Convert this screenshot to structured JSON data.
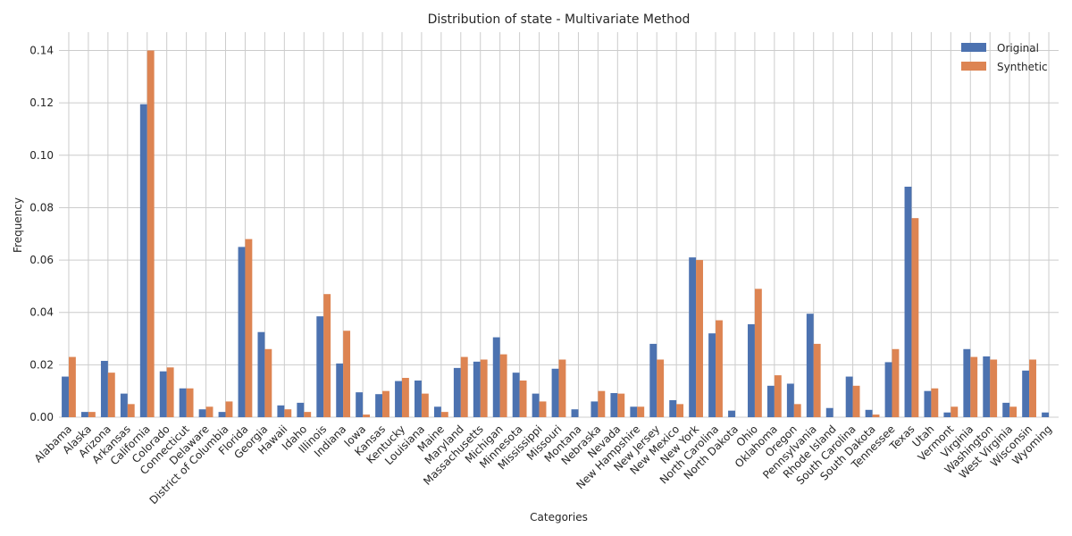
{
  "chart_data": {
    "type": "bar",
    "title": "Distribution of state - Multivariate Method",
    "xlabel": "Categories",
    "ylabel": "Frequency",
    "ylim": [
      0,
      0.147
    ],
    "yticks": [
      0.0,
      0.02,
      0.04,
      0.06,
      0.08,
      0.1,
      0.12,
      0.14
    ],
    "grid": true,
    "legend_position": "top-right",
    "colors": {
      "Original": "#4c72b0",
      "Synthetic": "#dd8452"
    },
    "categories": [
      "Alabama",
      "Alaska",
      "Arizona",
      "Arkansas",
      "California",
      "Colorado",
      "Connecticut",
      "Delaware",
      "District of Columbia",
      "Florida",
      "Georgia",
      "Hawaii",
      "Idaho",
      "Illinois",
      "Indiana",
      "Iowa",
      "Kansas",
      "Kentucky",
      "Louisiana",
      "Maine",
      "Maryland",
      "Massachusetts",
      "Michigan",
      "Minnesota",
      "Mississippi",
      "Missouri",
      "Montana",
      "Nebraska",
      "Nevada",
      "New Hampshire",
      "New Jersey",
      "New Mexico",
      "New York",
      "North Carolina",
      "North Dakota",
      "Ohio",
      "Oklahoma",
      "Oregon",
      "Pennsylvania",
      "Rhode Island",
      "South Carolina",
      "South Dakota",
      "Tennessee",
      "Texas",
      "Utah",
      "Vermont",
      "Virginia",
      "Washington",
      "West Virginia",
      "Wisconsin",
      "Wyoming"
    ],
    "series": [
      {
        "name": "Original",
        "values": [
          0.0155,
          0.002,
          0.0215,
          0.009,
          0.1195,
          0.0175,
          0.011,
          0.003,
          0.002,
          0.065,
          0.0325,
          0.0045,
          0.0055,
          0.0385,
          0.0205,
          0.0095,
          0.0088,
          0.0138,
          0.014,
          0.004,
          0.0188,
          0.0212,
          0.0305,
          0.017,
          0.009,
          0.0185,
          0.003,
          0.006,
          0.0092,
          0.004,
          0.028,
          0.0065,
          0.061,
          0.032,
          0.0025,
          0.0355,
          0.012,
          0.0128,
          0.0395,
          0.0035,
          0.0155,
          0.0028,
          0.021,
          0.088,
          0.01,
          0.0018,
          0.026,
          0.0232,
          0.0055,
          0.0178,
          0.0018
        ]
      },
      {
        "name": "Synthetic",
        "values": [
          0.023,
          0.002,
          0.017,
          0.005,
          0.14,
          0.019,
          0.011,
          0.004,
          0.006,
          0.068,
          0.026,
          0.003,
          0.002,
          0.047,
          0.033,
          0.001,
          0.01,
          0.015,
          0.009,
          0.002,
          0.023,
          0.022,
          0.024,
          0.014,
          0.006,
          0.022,
          0.0,
          0.01,
          0.009,
          0.004,
          0.022,
          0.005,
          0.06,
          0.037,
          0.0,
          0.049,
          0.016,
          0.005,
          0.028,
          0.0,
          0.012,
          0.001,
          0.026,
          0.076,
          0.011,
          0.004,
          0.023,
          0.022,
          0.004,
          0.022,
          0.0
        ]
      }
    ]
  }
}
